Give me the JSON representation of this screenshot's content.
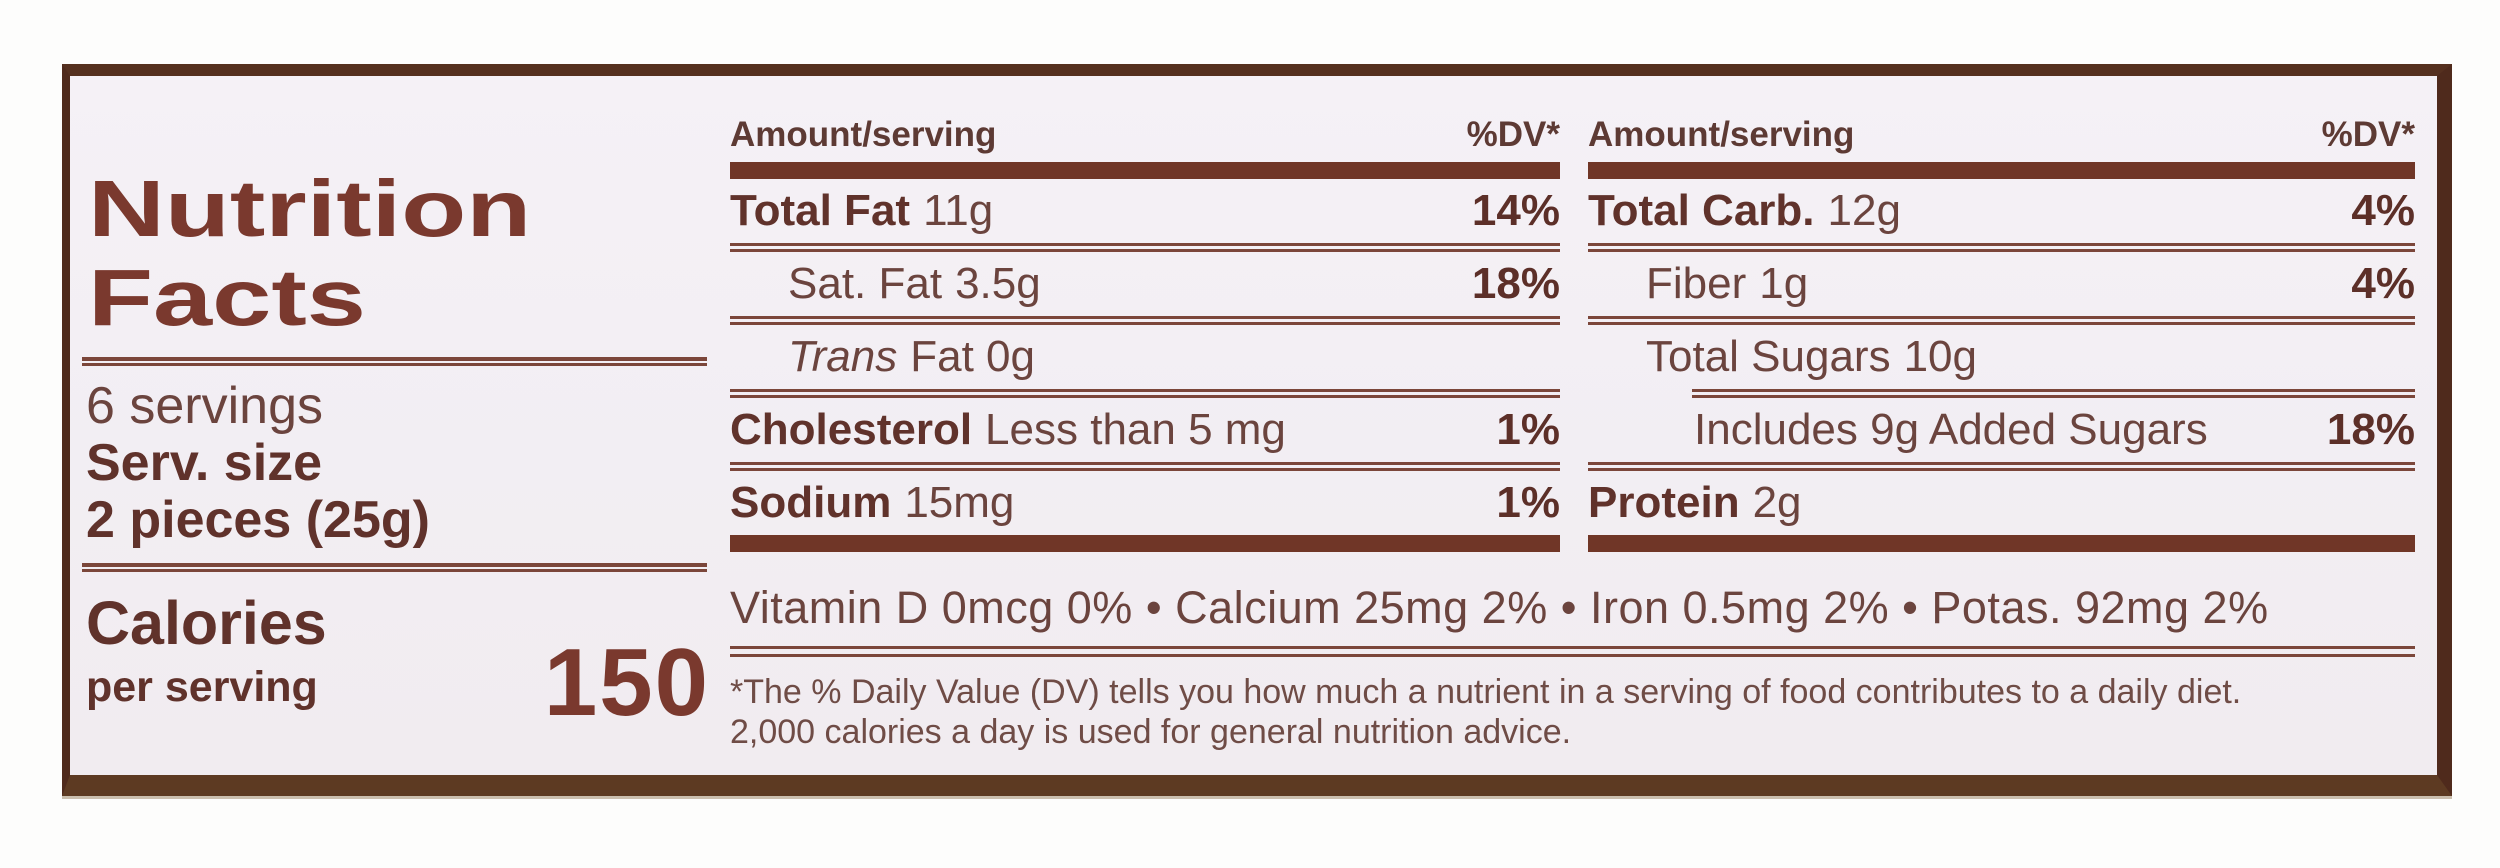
{
  "colors": {
    "title": "#7a392e",
    "text": "#6b443e",
    "bars_and_rules": "#703627",
    "label_border": "#4f2a1c",
    "label_background": "#f3eff4"
  },
  "label": {
    "title_lines": [
      "Nutrition",
      "Facts"
    ],
    "servings_count": "6 servings",
    "serving_size_label": "Serv. size",
    "serving_size_value": "2 pieces (25g)",
    "calories": {
      "label": "Calories",
      "sublabel": "per serving",
      "value": "150"
    },
    "fat_column": {
      "header_amount": "Amount/serving",
      "header_dv": "%DV*",
      "rows": {
        "total_fat": {
          "name": "Total Fat",
          "amount": "11g",
          "dv": "14%"
        },
        "sat_fat": {
          "name": "Sat. Fat",
          "amount": "3.5g",
          "dv": "18%"
        },
        "trans_fat": {
          "name": "Trans",
          "amount": "Fat 0g",
          "dv": ""
        },
        "cholesterol": {
          "name": "Cholesterol",
          "amount": "Less than 5 mg",
          "dv": "1%"
        },
        "sodium": {
          "name": "Sodium",
          "amount": "15mg",
          "dv": "1%"
        }
      }
    },
    "carb_column": {
      "header_amount": "Amount/serving",
      "header_dv": "%DV*",
      "rows": {
        "total_carb": {
          "name": "Total Carb.",
          "amount": "12g",
          "dv": "4%"
        },
        "fiber": {
          "name": "Fiber",
          "amount": "1g",
          "dv": "4%"
        },
        "total_sugars": {
          "name": "Total Sugars",
          "amount": "10g",
          "dv": ""
        },
        "added_sugars": {
          "name": "Includes 9g Added Sugars",
          "amount": "",
          "dv": "18%"
        },
        "protein": {
          "name": "Protein",
          "amount": "2g",
          "dv": ""
        }
      }
    },
    "micronutrients": "Vitamin D 0mcg 0% • Calcium 25mg 2% • Iron 0.5mg 2% • Potas. 92mg 2%",
    "footnote_lines": [
      "*The % Daily Value (DV) tells you how much a nutrient in a serving of food contributes to a daily diet.",
      "2,000 calories a day is used for general nutrition advice."
    ]
  }
}
